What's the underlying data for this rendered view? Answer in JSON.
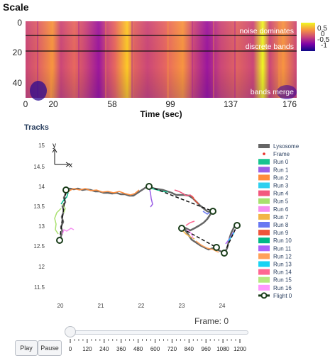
{
  "scale_panel": {
    "title": "Scale",
    "y_ticks": [
      "0",
      "20",
      "40"
    ],
    "x_ticks": [
      "0",
      "20",
      "58",
      "99",
      "137",
      "176"
    ],
    "xlabel": "Time (sec)",
    "band_labels": [
      "noise dominates",
      "discrete bands",
      "bands merge"
    ],
    "colorbar_ticks": [
      "0.5",
      "0",
      "-0.5",
      "-1"
    ],
    "colorscale": [
      "#0d0887",
      "#7e03a8",
      "#cc4778",
      "#f89540",
      "#f0f921"
    ]
  },
  "tracks_panel": {
    "title": "Tracks",
    "y_ticks": [
      "15",
      "14.5",
      "14",
      "13.5",
      "13",
      "12.5",
      "12",
      "11.5"
    ],
    "x_ticks": [
      "20",
      "21",
      "22",
      "23",
      "24"
    ],
    "axis_y_label": "y",
    "axis_x_label": "x",
    "legend": [
      {
        "label": "Lysosome",
        "color": "#666666",
        "kind": "thick-line"
      },
      {
        "label": "Frame",
        "color": "#e8312c",
        "kind": "dot"
      },
      {
        "label": "Run 0",
        "color": "#17c490",
        "kind": "swatch"
      },
      {
        "label": "Run 1",
        "color": "#9a5fe6",
        "kind": "swatch"
      },
      {
        "label": "Run 2",
        "color": "#ff8c3b",
        "kind": "swatch"
      },
      {
        "label": "Run 3",
        "color": "#2fd0ef",
        "kind": "swatch"
      },
      {
        "label": "Run 4",
        "color": "#f2577e",
        "kind": "swatch"
      },
      {
        "label": "Run 5",
        "color": "#a8e06e",
        "kind": "swatch"
      },
      {
        "label": "Run 6",
        "color": "#f58ef0",
        "kind": "swatch"
      },
      {
        "label": "Run 7",
        "color": "#f2b548",
        "kind": "swatch"
      },
      {
        "label": "Run 8",
        "color": "#6878f2",
        "kind": "swatch"
      },
      {
        "label": "Run 9",
        "color": "#ef553b",
        "kind": "swatch"
      },
      {
        "label": "Run 10",
        "color": "#00b887",
        "kind": "swatch"
      },
      {
        "label": "Run 11",
        "color": "#ab63fa",
        "kind": "swatch"
      },
      {
        "label": "Run 12",
        "color": "#ffa15a",
        "kind": "swatch"
      },
      {
        "label": "Run 13",
        "color": "#19d3f3",
        "kind": "swatch"
      },
      {
        "label": "Run 14",
        "color": "#ff6692",
        "kind": "swatch"
      },
      {
        "label": "Run 15",
        "color": "#b6e880",
        "kind": "swatch"
      },
      {
        "label": "Run 16",
        "color": "#ff97ff",
        "kind": "swatch"
      },
      {
        "label": "Flight 0",
        "color": "#1a3d1a",
        "kind": "flight"
      }
    ]
  },
  "player": {
    "frame_label": "Frame: 0",
    "play_label": "Play",
    "pause_label": "Pause",
    "slider_ticks": [
      "0",
      "120",
      "240",
      "360",
      "480",
      "600",
      "720",
      "840",
      "960",
      "1080",
      "1200"
    ],
    "current_frame": 0
  }
}
